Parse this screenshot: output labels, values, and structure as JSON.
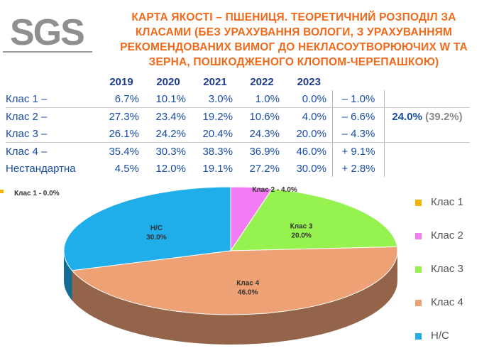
{
  "logo": {
    "text": "SGS"
  },
  "title": [
    "КАРТА ЯКОСТІ – ПШЕНИЦЯ. ТЕОРЕТИЧНИЙ РОЗПОДІЛ ЗА",
    "КЛАСАМИ (БЕЗ УРАХУВАННЯ ВОЛОГИ, З УРАХУВАННЯМ",
    "РЕКОМЕНДОВАНИХ ВИМОГ ДО НЕКЛАСОУТВОРЮЮЧИХ W ТА",
    "ЗЕРНА, ПОШКОДЖЕНОГО  КЛОПОМ-ЧЕРЕПАШКОЮ)"
  ],
  "table": {
    "years": [
      "2019",
      "2020",
      "2021",
      "2022",
      "2023"
    ],
    "rows": [
      {
        "label": "Клас 1 –",
        "values": [
          "6.7%",
          "10.1%",
          "3.0%",
          "1.0%",
          "0.0%"
        ],
        "delta": "– 1.0%"
      },
      {
        "label": "Клас 2 –",
        "values": [
          "27.3%",
          "23.4%",
          "19.2%",
          "10.6%",
          "4.0%"
        ],
        "delta": "– 6.6%"
      },
      {
        "label": "Клас 3 –",
        "values": [
          "26.1%",
          "24.2%",
          "20.4%",
          "24.3%",
          "20.0%"
        ],
        "delta": "– 4.3%"
      },
      {
        "label": "Клас 4 –",
        "values": [
          "35.4%",
          "30.3%",
          "38.3%",
          "36.9%",
          "46.0%"
        ],
        "delta": "+ 9.1%"
      },
      {
        "label": "Нестандартна",
        "values": [
          "4.5%",
          "12.0%",
          "19.1%",
          "27.2%",
          "30.0%"
        ],
        "delta": "+ 2.8%"
      }
    ],
    "summary_main": "24.0%",
    "summary_sub": "(39.2%)"
  },
  "chart_data": {
    "type": "pie",
    "title": "",
    "slices": [
      {
        "name": "Клас 1",
        "value": 0.0,
        "label": "Клас 1 - 0.0%",
        "color": "#f5b300"
      },
      {
        "name": "Клас 2",
        "value": 4.0,
        "label": "Клас 2 - 4.0%",
        "color": "#f27cf4"
      },
      {
        "name": "Клас 3",
        "value": 20.0,
        "label": "Клас 3\n20.0%",
        "color": "#96f24e"
      },
      {
        "name": "Клас 4",
        "value": 46.0,
        "label": "Клас 4\n46.0%",
        "color": "#eda175"
      },
      {
        "name": "Н/С",
        "value": 30.0,
        "label": "Н/С\n30.0%",
        "color": "#1faeea"
      }
    ],
    "legend": {
      "position": "right",
      "items": [
        "Клас 1",
        "Клас 2",
        "Клас 3",
        "Клас 4",
        "Н/С"
      ]
    }
  }
}
